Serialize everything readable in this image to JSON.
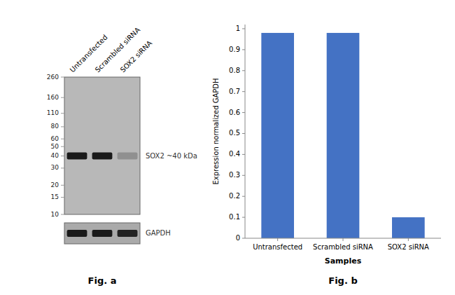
{
  "chart_data": [
    {
      "type": "blot",
      "title": "Fig. a",
      "categories": [
        "Untransfected",
        "Scrambled siRNA",
        "SOX2 siRNA"
      ],
      "log": "y",
      "ylim": [
        10,
        260
      ],
      "yticks": [
        260,
        160,
        110,
        80,
        60,
        50,
        40,
        30,
        20,
        15,
        10
      ],
      "color": "#b8b8b8",
      "series": [
        {
          "name": "SOX2 ~40 kDa",
          "values": [
            40,
            40,
            40
          ],
          "colors": [
            "#1a1a1a",
            "#1a1a1a",
            "#909090"
          ]
        },
        {
          "name": "GAPDH",
          "type": "strip",
          "colors": [
            "#1a1a1a",
            "#1a1a1a",
            "#222222"
          ]
        }
      ]
    },
    {
      "type": "bar",
      "title": "Fig. b",
      "categories": [
        "Untransfected",
        "Scrambled siRNA",
        "SOX2 siRNA"
      ],
      "values": [
        0.98,
        0.98,
        0.1
      ],
      "color": "#4472c4",
      "xlabel": "Samples",
      "ylabel": "Expression normalized GAPDH",
      "ylim": [
        0,
        1.02
      ],
      "yticks": [
        0,
        0.1,
        0.2,
        0.3,
        0.4,
        0.5,
        0.6,
        0.7,
        0.8,
        0.9,
        1
      ]
    }
  ]
}
